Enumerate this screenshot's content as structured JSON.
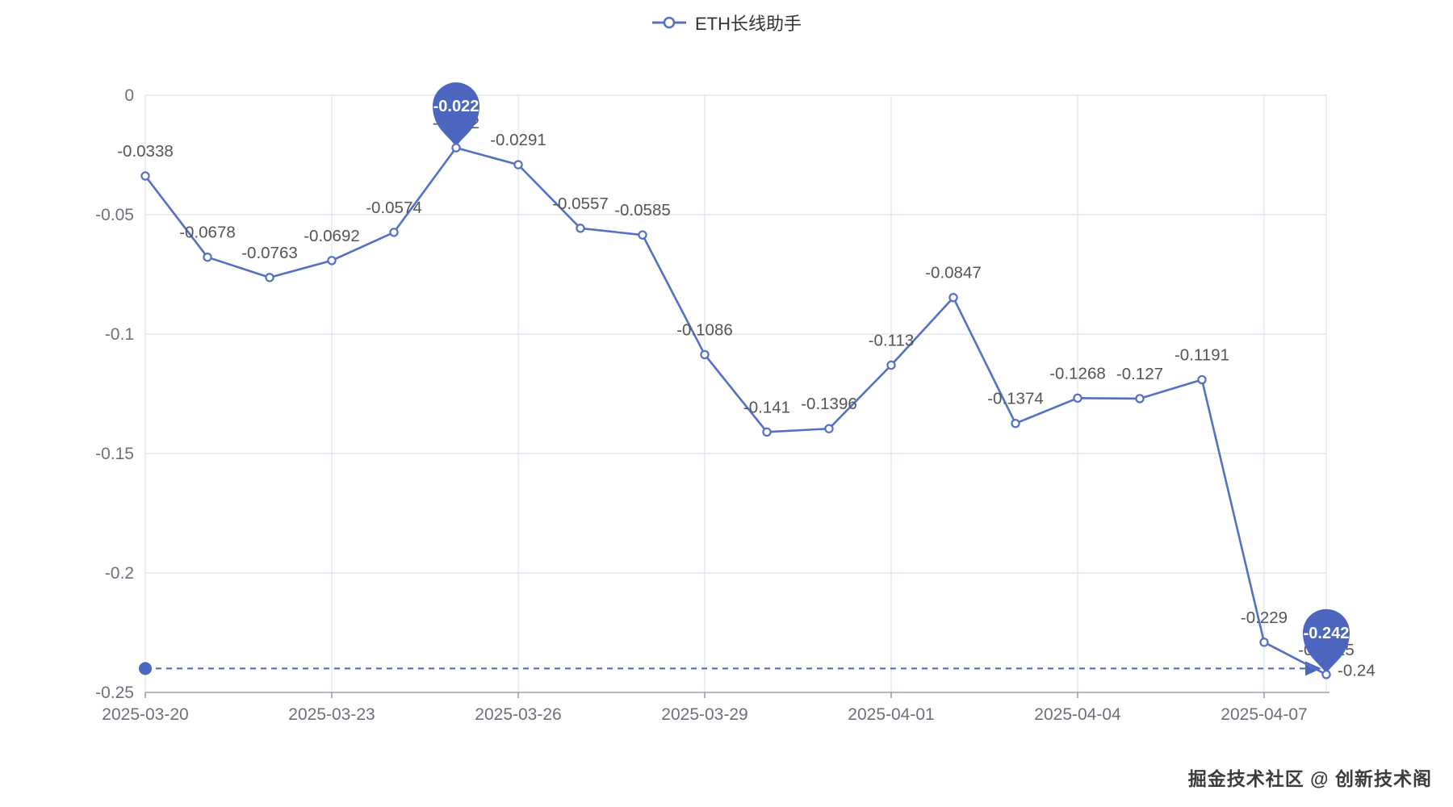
{
  "legend": {
    "label": "ETH长线助手"
  },
  "watermark": "掘金技术社区 @ 创新技术阁",
  "chart_data": {
    "type": "line",
    "title": "",
    "legend_position": "top-center",
    "grid": true,
    "ylim": [
      -0.25,
      0
    ],
    "y_ticks": [
      0,
      -0.05,
      -0.1,
      -0.15,
      -0.2,
      -0.25
    ],
    "y_tick_labels": [
      "0",
      "-0.05",
      "-0.1",
      "-0.15",
      "-0.2",
      "-0.25"
    ],
    "x_tick_labels": [
      "2025-03-20",
      "2025-03-23",
      "2025-03-26",
      "2025-03-29",
      "2025-04-01",
      "2025-04-04",
      "2025-04-07"
    ],
    "series": [
      {
        "name": "ETH长线助手",
        "color": "#5470c6",
        "x": [
          "2025-03-20",
          "2025-03-21",
          "2025-03-22",
          "2025-03-23",
          "2025-03-24",
          "2025-03-25",
          "2025-03-26",
          "2025-03-27",
          "2025-03-28",
          "2025-03-29",
          "2025-03-30",
          "2025-03-31",
          "2025-04-01",
          "2025-04-02",
          "2025-04-03",
          "2025-04-04",
          "2025-04-05",
          "2025-04-06",
          "2025-04-07",
          "2025-04-08"
        ],
        "values": [
          -0.0338,
          -0.0678,
          -0.0763,
          -0.0692,
          -0.0574,
          -0.022,
          -0.0291,
          -0.0557,
          -0.0585,
          -0.1086,
          -0.141,
          -0.1396,
          -0.113,
          -0.0847,
          -0.1374,
          -0.1268,
          -0.127,
          -0.1191,
          -0.229,
          -0.2425
        ],
        "point_labels": [
          "-0.0338",
          "-0.0678",
          "-0.0763",
          "-0.0692",
          "-0.0574",
          "-0.022",
          "-0.0291",
          "-0.0557",
          "-0.0585",
          "-0.1086",
          "-0.141",
          "-0.1396",
          "-0.113",
          "-0.0847",
          "-0.1374",
          "-0.1268",
          "-0.127",
          "-0.1191",
          "-0.229",
          "-0.2425"
        ]
      }
    ],
    "mark_point_max": {
      "date": "2025-03-25",
      "value": -0.022,
      "label": "-0.022"
    },
    "mark_point_min": {
      "date": "2025-04-08",
      "value": -0.2425,
      "label": "-0.242"
    },
    "mark_line": {
      "value": -0.24,
      "label": "-0.24",
      "style": "dashed"
    },
    "colors": {
      "line": "#5470c6",
      "pin": "#4c66c0",
      "grid_line": "#e0e6f1",
      "axis_line": "#9aa1ab",
      "axis_label": "#6e7079",
      "point_label": "#555555"
    }
  }
}
